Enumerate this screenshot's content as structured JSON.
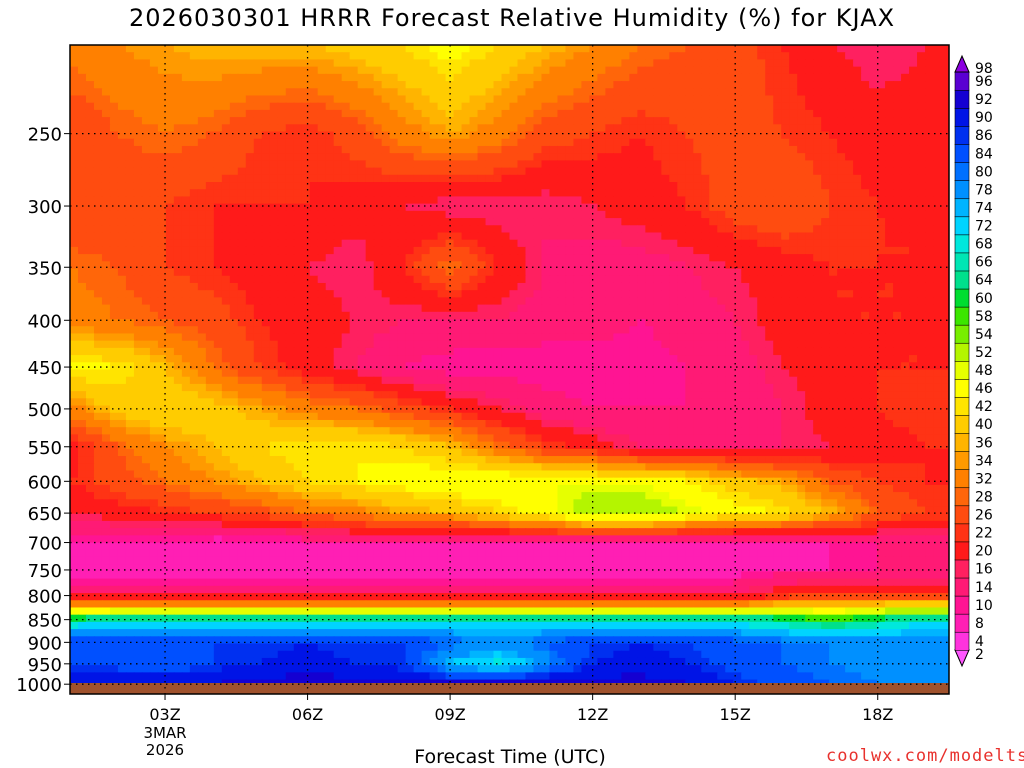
{
  "page": {
    "title": "2026030301 HRRR Forecast Relative Humidity (%) for KJAX",
    "credit": "coolwx.com/modelts"
  },
  "chart_data": {
    "type": "heatmap",
    "title": "2026030301 HRRR Forecast Relative Humidity (%) for KJAX",
    "xlabel": "Forecast Time (UTC)",
    "ylabel": "",
    "x_hours": [
      1,
      2,
      3,
      4,
      5,
      6,
      7,
      8,
      9,
      10,
      11,
      12,
      13,
      14,
      15,
      16,
      17,
      18,
      19
    ],
    "xlim": [
      1,
      19.5
    ],
    "x_ticks": [
      {
        "hour": 3,
        "label": "03Z",
        "sub1": "3MAR",
        "sub2": "2026"
      },
      {
        "hour": 6,
        "label": "06Z",
        "sub1": "",
        "sub2": ""
      },
      {
        "hour": 9,
        "label": "09Z",
        "sub1": "",
        "sub2": ""
      },
      {
        "hour": 12,
        "label": "12Z",
        "sub1": "",
        "sub2": ""
      },
      {
        "hour": 15,
        "label": "15Z",
        "sub1": "",
        "sub2": ""
      },
      {
        "hour": 18,
        "label": "18Z",
        "sub1": "",
        "sub2": ""
      }
    ],
    "y_levels": [
      1000,
      950,
      900,
      850,
      800,
      750,
      700,
      650,
      600,
      550,
      500,
      450,
      400,
      350,
      300,
      250,
      200
    ],
    "y_ticks": [
      1000,
      950,
      900,
      850,
      800,
      750,
      700,
      650,
      600,
      550,
      500,
      450,
      400,
      350,
      300,
      250
    ],
    "ylim": [
      1025,
      200
    ],
    "y_scale": "log-pressure",
    "grid": true,
    "ground_color": "#a0522d",
    "colorbar": {
      "levels": [
        2,
        4,
        8,
        10,
        14,
        16,
        20,
        22,
        26,
        28,
        32,
        34,
        36,
        40,
        42,
        46,
        48,
        52,
        54,
        58,
        60,
        64,
        66,
        68,
        72,
        74,
        78,
        80,
        84,
        86,
        90,
        92,
        96,
        98
      ],
      "colors": [
        "#ff55ff",
        "#ff33dd",
        "#ff1fb4",
        "#ff1493",
        "#ff1a75",
        "#ff2060",
        "#ff1a1a",
        "#ff3315",
        "#ff4c10",
        "#ff660a",
        "#ff8000",
        "#ff9a00",
        "#ffb400",
        "#ffcc00",
        "#ffe400",
        "#ffff00",
        "#e6ff00",
        "#b4f500",
        "#78ee00",
        "#3ce600",
        "#00dd30",
        "#00e08c",
        "#00e6b4",
        "#00e8dc",
        "#00d4ff",
        "#00b4ff",
        "#0090ff",
        "#0070ff",
        "#0050ff",
        "#0030f0",
        "#0014e6",
        "#1400d2",
        "#5a00d2",
        "#8c00e0"
      ],
      "position": "right"
    },
    "rh_grid": [
      [
        90,
        90,
        90,
        90,
        92,
        92,
        92,
        92,
        92,
        92,
        92,
        92,
        92,
        90,
        86,
        82,
        80,
        78,
        76
      ],
      [
        84,
        82,
        80,
        84,
        86,
        88,
        86,
        84,
        72,
        66,
        76,
        86,
        88,
        86,
        82,
        80,
        78,
        76,
        74
      ],
      [
        84,
        84,
        82,
        84,
        84,
        86,
        84,
        84,
        80,
        78,
        80,
        84,
        86,
        84,
        82,
        80,
        78,
        78,
        78
      ],
      [
        62,
        64,
        64,
        66,
        66,
        66,
        66,
        66,
        66,
        66,
        66,
        66,
        66,
        66,
        64,
        62,
        58,
        62,
        66
      ],
      [
        14,
        14,
        14,
        14,
        14,
        14,
        14,
        14,
        14,
        14,
        14,
        14,
        14,
        14,
        14,
        20,
        22,
        22,
        22
      ],
      [
        6,
        6,
        4,
        4,
        6,
        6,
        6,
        6,
        6,
        6,
        6,
        6,
        6,
        6,
        6,
        8,
        8,
        10,
        10
      ],
      [
        8,
        8,
        8,
        6,
        6,
        8,
        8,
        8,
        8,
        8,
        8,
        8,
        8,
        6,
        6,
        6,
        8,
        10,
        12
      ],
      [
        16,
        18,
        20,
        22,
        24,
        28,
        30,
        34,
        36,
        40,
        44,
        52,
        52,
        48,
        44,
        42,
        36,
        26,
        22
      ],
      [
        20,
        24,
        28,
        32,
        36,
        40,
        42,
        44,
        46,
        46,
        46,
        46,
        46,
        42,
        38,
        34,
        26,
        22,
        20
      ],
      [
        18,
        26,
        32,
        36,
        40,
        42,
        42,
        40,
        36,
        28,
        22,
        18,
        14,
        12,
        12,
        14,
        16,
        18,
        20
      ],
      [
        30,
        38,
        40,
        38,
        34,
        30,
        28,
        24,
        20,
        16,
        12,
        10,
        10,
        10,
        10,
        14,
        18,
        20,
        22
      ],
      [
        44,
        42,
        36,
        28,
        22,
        18,
        14,
        10,
        8,
        8,
        8,
        8,
        8,
        10,
        12,
        16,
        18,
        20,
        20
      ],
      [
        30,
        28,
        26,
        24,
        20,
        18,
        16,
        14,
        14,
        14,
        12,
        12,
        10,
        12,
        14,
        18,
        20,
        20,
        20
      ],
      [
        28,
        26,
        22,
        20,
        18,
        16,
        14,
        20,
        28,
        20,
        14,
        12,
        12,
        14,
        16,
        18,
        20,
        20,
        20
      ],
      [
        22,
        22,
        22,
        20,
        20,
        20,
        18,
        16,
        14,
        14,
        14,
        16,
        18,
        20,
        24,
        26,
        22,
        20,
        20
      ],
      [
        22,
        26,
        28,
        26,
        22,
        20,
        24,
        30,
        34,
        30,
        24,
        22,
        20,
        22,
        24,
        22,
        20,
        18,
        18
      ],
      [
        30,
        32,
        34,
        36,
        36,
        36,
        38,
        40,
        44,
        40,
        36,
        32,
        28,
        26,
        24,
        20,
        16,
        14,
        16
      ]
    ]
  }
}
